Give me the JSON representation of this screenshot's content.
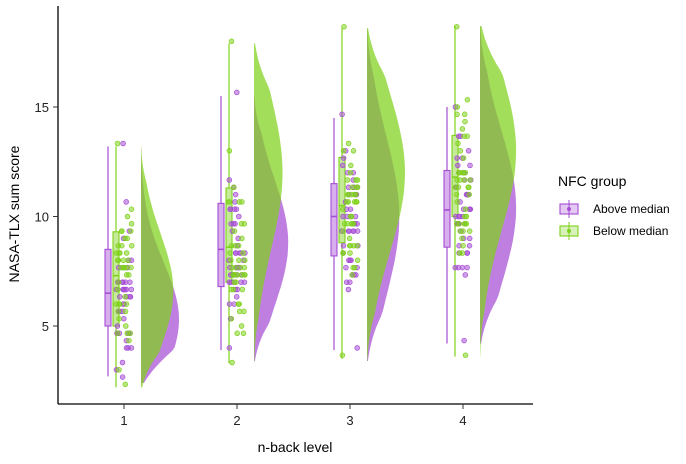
{
  "chart_data": {
    "type": "raincloud",
    "xlabel": "n-back level",
    "ylabel": "NASA-TLX sum score",
    "categories": [
      "1",
      "2",
      "3",
      "4"
    ],
    "yticks": [
      5,
      10,
      15
    ],
    "ylim": [
      1.7,
      19.2
    ],
    "grid": false,
    "legend": {
      "title": "NFC group",
      "position": "right",
      "entries": [
        "Above median",
        "Below median"
      ]
    },
    "series": [
      {
        "name": "Above median",
        "color": "#a64dd6",
        "box": [
          {
            "category": "1",
            "min": 2.7,
            "q1": 5.0,
            "median": 6.5,
            "q3": 8.5,
            "max": 13.2
          },
          {
            "category": "2",
            "min": 3.9,
            "q1": 6.8,
            "median": 8.5,
            "q3": 10.6,
            "max": 15.5
          },
          {
            "category": "3",
            "min": 3.9,
            "q1": 8.2,
            "median": 10.0,
            "q3": 11.5,
            "max": 14.5
          },
          {
            "category": "4",
            "min": 4.2,
            "q1": 8.6,
            "median": 10.3,
            "q3": 12.1,
            "max": 15.0
          }
        ],
        "density": [
          {
            "category": "1",
            "min": 2.4,
            "max": 13.2,
            "mode": 5.3,
            "peak": 1.0
          },
          {
            "category": "2",
            "min": 3.4,
            "max": 15.5,
            "mode": 8.8,
            "peak": 0.9
          },
          {
            "category": "3",
            "min": 3.4,
            "max": 18.6,
            "mode": 10.0,
            "peak": 0.85
          },
          {
            "category": "4",
            "min": 4.2,
            "max": 18.7,
            "mode": 10.4,
            "peak": 0.95
          }
        ]
      },
      {
        "name": "Below median",
        "color": "#7fd11b",
        "box": [
          {
            "category": "1",
            "min": 2.2,
            "q1": 5.0,
            "median": 7.3,
            "q3": 9.3,
            "max": 13.2
          },
          {
            "category": "2",
            "min": 3.3,
            "q1": 7.0,
            "median": 8.6,
            "q3": 11.3,
            "max": 17.9
          },
          {
            "category": "3",
            "min": 3.5,
            "q1": 8.8,
            "median": 10.5,
            "q3": 12.7,
            "max": 18.6
          },
          {
            "category": "4",
            "min": 3.6,
            "q1": 10.0,
            "median": 11.8,
            "q3": 13.7,
            "max": 18.7
          }
        ],
        "density": [
          {
            "category": "1",
            "min": 2.2,
            "max": 13.2,
            "mode": 6.6,
            "peak": 0.85
          },
          {
            "category": "2",
            "min": 3.3,
            "max": 17.9,
            "mode": 12.0,
            "peak": 0.75
          },
          {
            "category": "3",
            "min": 3.4,
            "max": 18.6,
            "mode": 12.0,
            "peak": 1.0
          },
          {
            "category": "4",
            "min": 3.6,
            "max": 18.7,
            "mode": 13.0,
            "peak": 0.95
          }
        ]
      }
    ]
  }
}
